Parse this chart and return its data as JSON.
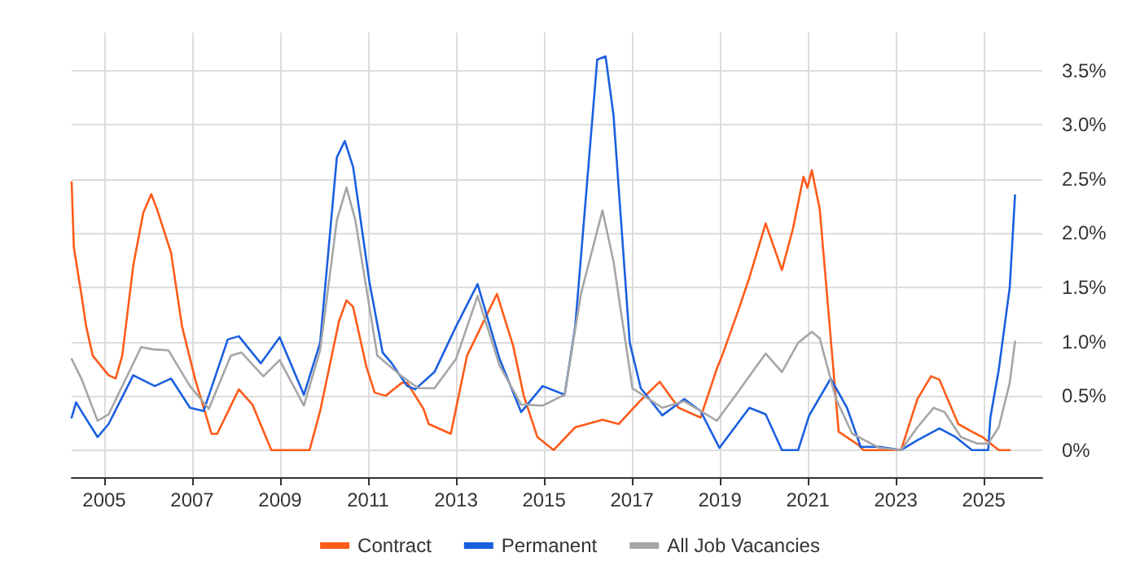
{
  "chart_data": {
    "type": "line",
    "legend": "bottom",
    "grid": true,
    "marker": "none",
    "line_style": "solid",
    "xlim": [
      2004.26,
      2026.33
    ],
    "xticks": [
      2005,
      2007,
      2009,
      2011,
      2013,
      2015,
      2017,
      2019,
      2021,
      2023,
      2025
    ],
    "ylim": [
      -0.25,
      3.85
    ],
    "yticks": [
      {
        "value": 0,
        "label": "0%"
      },
      {
        "value": 0.5,
        "label": "0.5%"
      },
      {
        "value": 1,
        "label": "1.0%"
      },
      {
        "value": 1.5,
        "label": "1.5%"
      },
      {
        "value": 2,
        "label": "2.0%"
      },
      {
        "value": 2.5,
        "label": "2.5%"
      },
      {
        "value": 3,
        "label": "3.0%"
      },
      {
        "value": 3.5,
        "label": "3.5%"
      }
    ],
    "series": [
      {
        "name": "Contract",
        "color": "#ff5b1a",
        "x": [
          2004.26,
          2004.31,
          2004.48,
          2004.59,
          2004.74,
          2005.1,
          2005.26,
          2005.41,
          2005.66,
          2005.89,
          2006.07,
          2006.21,
          2006.52,
          2006.77,
          2007.07,
          2007.44,
          2007.57,
          2008.06,
          2008.37,
          2008.8,
          2009.67,
          2009.91,
          2010.34,
          2010.51,
          2010.66,
          2010.96,
          2011.15,
          2011.4,
          2011.52,
          2011.77,
          2011.89,
          2012.26,
          2012.38,
          2012.88,
          2013.25,
          2013.93,
          2014.3,
          2014.54,
          2014.85,
          2015.22,
          2015.71,
          2016.33,
          2016.7,
          2017.2,
          2017.63,
          2018.06,
          2018.56,
          2018.93,
          2019.05,
          2019.42,
          2019.67,
          2020.04,
          2020.41,
          2020.66,
          2020.9,
          2020.99,
          2021.09,
          2021.27,
          2021.7,
          2022.14,
          2022.26,
          2023.12,
          2023.49,
          2023.8,
          2023.99,
          2024.42,
          2024.73,
          2024.97,
          2025.34,
          2025.59
        ],
        "values": [
          2.47,
          1.87,
          1.44,
          1.14,
          0.87,
          0.69,
          0.66,
          0.87,
          1.7,
          2.19,
          2.36,
          2.21,
          1.82,
          1.14,
          0.65,
          0.15,
          0.15,
          0.56,
          0.42,
          0,
          0,
          0.36,
          1.19,
          1.38,
          1.32,
          0.77,
          0.53,
          0.5,
          0.54,
          0.62,
          0.62,
          0.38,
          0.24,
          0.15,
          0.87,
          1.44,
          0.96,
          0.5,
          0.12,
          0,
          0.21,
          0.28,
          0.24,
          0.46,
          0.63,
          0.39,
          0.3,
          0.75,
          0.87,
          1.29,
          1.59,
          2.09,
          1.66,
          2.04,
          2.52,
          2.42,
          2.58,
          2.22,
          0.17,
          0.05,
          0,
          0,
          0.47,
          0.68,
          0.65,
          0.24,
          0.17,
          0.12,
          0,
          0
        ]
      },
      {
        "name": "Permanent",
        "color": "#1a5fe0",
        "x": [
          2004.26,
          2004.36,
          2004.54,
          2004.85,
          2005.1,
          2005.66,
          2006.15,
          2006.52,
          2006.95,
          2007.26,
          2007.81,
          2008.06,
          2008.56,
          2008.99,
          2009.54,
          2009.91,
          2010.29,
          2010.47,
          2010.66,
          2011.03,
          2011.33,
          2011.52,
          2011.89,
          2012.07,
          2012.51,
          2013.0,
          2013.49,
          2013.99,
          2014.48,
          2014.97,
          2015.47,
          2015.71,
          2016.21,
          2016.4,
          2016.58,
          2016.95,
          2017.2,
          2017.69,
          2018.19,
          2018.56,
          2018.99,
          2019.67,
          2020.04,
          2020.41,
          2020.78,
          2021.03,
          2021.52,
          2021.89,
          2022.2,
          2022.63,
          2023.12,
          2023.49,
          2023.99,
          2024.36,
          2024.73,
          2025.1,
          2025.15,
          2025.34,
          2025.59,
          2025.71
        ],
        "values": [
          0.3,
          0.44,
          0.32,
          0.12,
          0.24,
          0.69,
          0.59,
          0.66,
          0.39,
          0.36,
          1.02,
          1.05,
          0.8,
          1.04,
          0.51,
          0.99,
          2.7,
          2.85,
          2.61,
          1.55,
          0.9,
          0.81,
          0.59,
          0.56,
          0.72,
          1.14,
          1.53,
          0.84,
          0.35,
          0.59,
          0.51,
          1.14,
          3.6,
          3.63,
          3.09,
          0.99,
          0.57,
          0.32,
          0.47,
          0.36,
          0.02,
          0.39,
          0.33,
          0,
          0,
          0.32,
          0.66,
          0.39,
          0.03,
          0.03,
          0,
          0.09,
          0.2,
          0.12,
          0,
          0,
          0.3,
          0.74,
          1.5,
          2.35
        ]
      },
      {
        "name": "All Job Vacancies",
        "color": "#a6a6a6",
        "x": [
          2004.26,
          2004.48,
          2004.85,
          2005.1,
          2005.84,
          2006.09,
          2006.46,
          2006.95,
          2007.38,
          2007.88,
          2008.12,
          2008.62,
          2008.99,
          2009.54,
          2009.91,
          2010.29,
          2010.51,
          2010.71,
          2011.21,
          2011.77,
          2012.14,
          2012.51,
          2013.0,
          2013.49,
          2013.99,
          2014.48,
          2014.97,
          2015.47,
          2015.84,
          2016.33,
          2016.58,
          2017.01,
          2017.69,
          2018.19,
          2018.93,
          2019.42,
          2019.79,
          2020.04,
          2020.41,
          2020.78,
          2021.09,
          2021.27,
          2021.64,
          2022.01,
          2022.63,
          2023.12,
          2023.49,
          2023.86,
          2024.11,
          2024.48,
          2024.85,
          2025.1,
          2025.34,
          2025.59,
          2025.71
        ],
        "values": [
          0.84,
          0.66,
          0.27,
          0.33,
          0.95,
          0.93,
          0.92,
          0.59,
          0.38,
          0.87,
          0.9,
          0.68,
          0.83,
          0.41,
          0.92,
          2.12,
          2.42,
          2.12,
          0.87,
          0.68,
          0.57,
          0.57,
          0.84,
          1.42,
          0.78,
          0.42,
          0.41,
          0.51,
          1.44,
          2.21,
          1.74,
          0.57,
          0.39,
          0.45,
          0.27,
          0.54,
          0.75,
          0.89,
          0.72,
          0.99,
          1.09,
          1.03,
          0.47,
          0.15,
          0.02,
          0,
          0.21,
          0.39,
          0.35,
          0.12,
          0.06,
          0.06,
          0.21,
          0.62,
          1.0
        ]
      }
    ]
  }
}
